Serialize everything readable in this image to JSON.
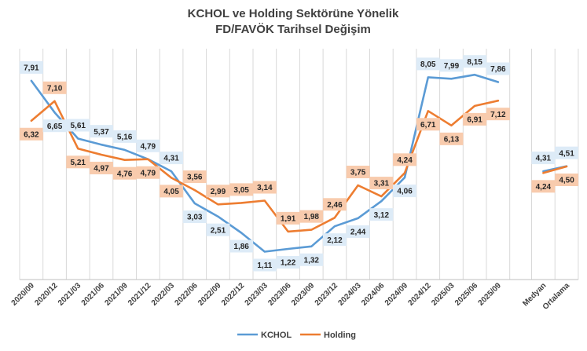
{
  "chart_data": {
    "type": "line",
    "title": "KCHOL ve Holding Sektörüne Yönelik",
    "subtitle": "FD/FAVÖK Tarihsel Değişim",
    "xlabel": "",
    "ylabel": "",
    "ylim": [
      0,
      9
    ],
    "grid": "vertical",
    "legend": "bottom",
    "categories": [
      "2020/09",
      "2020/12",
      "2021/03",
      "2021/06",
      "2021/09",
      "2021/12",
      "2022/03",
      "2022/06",
      "2022/09",
      "2022/12",
      "2023/03",
      "2023/06",
      "2023/09",
      "2023/12",
      "2024/03",
      "2024/06",
      "2024/09",
      "2024/12",
      "2025/03",
      "2025/06",
      "2025/09"
    ],
    "summary_categories": [
      "Medyan",
      "Ortalama"
    ],
    "series": [
      {
        "name": "KCHOL",
        "color": "#5B9BD5",
        "label_bg": "#DDEBF7",
        "values": [
          7.91,
          6.65,
          5.61,
          5.37,
          5.16,
          4.79,
          4.31,
          3.03,
          2.51,
          1.86,
          1.11,
          1.22,
          1.32,
          2.12,
          2.44,
          3.12,
          4.06,
          8.05,
          7.99,
          8.15,
          7.86
        ],
        "summary": [
          4.31,
          4.51
        ],
        "labels": [
          "7,91",
          "6,65",
          "5,61",
          "5,37",
          "5,16",
          "4,79",
          "4,31",
          "3,03",
          "2,51",
          "1,86",
          "1,11",
          "1,22",
          "1,32",
          "2,12",
          "2,44",
          "3,12",
          "4,06",
          "8,05",
          "7,99",
          "8,15",
          "7,86"
        ],
        "summary_labels": [
          "4,31",
          "4,51"
        ]
      },
      {
        "name": "Holding",
        "color": "#ED7D31",
        "label_bg": "#F8CBAD",
        "values": [
          6.32,
          7.1,
          5.21,
          4.97,
          4.76,
          4.79,
          4.05,
          3.56,
          2.99,
          3.05,
          3.14,
          1.91,
          1.98,
          2.46,
          3.75,
          3.31,
          4.24,
          6.71,
          6.13,
          6.91,
          7.12
        ],
        "summary": [
          4.24,
          4.5
        ],
        "labels": [
          "6,32",
          "7,10",
          "5,21",
          "4,97",
          "4,76",
          "4,79",
          "4,05",
          "3,56",
          "2,99",
          "3,05",
          "3,14",
          "1,91",
          "1,98",
          "2,46",
          "3,75",
          "3,31",
          "4,24",
          "6,71",
          "6,13",
          "6,91",
          "7,12"
        ],
        "summary_labels": [
          "4,24",
          "4,50"
        ]
      }
    ]
  }
}
